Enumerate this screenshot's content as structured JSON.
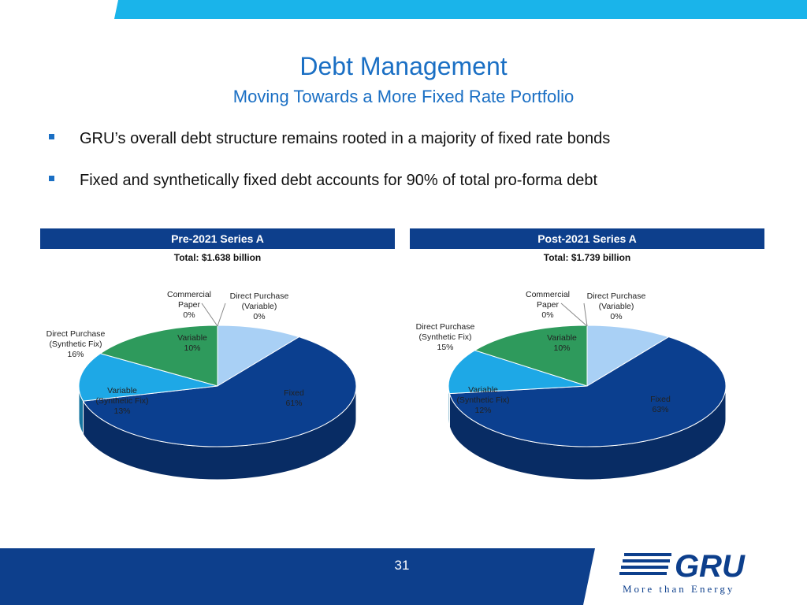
{
  "title": "Debt Management",
  "subtitle": "Moving Towards a More Fixed Rate Portfolio",
  "bullets": [
    "GRU’s overall debt structure remains rooted in a majority of fixed rate bonds",
    "Fixed and synthetically fixed debt accounts for 90% of total pro-forma debt"
  ],
  "page_number": "31",
  "logo": {
    "text": "GRU",
    "tagline": "More than Energy"
  },
  "colors": {
    "accent": "#1a6fc4",
    "header_bar": "#0d3f8c",
    "fixed": "#0b3f8f",
    "variable_synthetic": "#1ea8e6",
    "direct_purchase_synthetic": "#2e9a5c",
    "variable": "#a9d0f5"
  },
  "chart_data": [
    {
      "type": "pie",
      "title": "Pre-2021 Series A",
      "subtitle": "Total: $1.638 billion",
      "slices": [
        {
          "label": "Commercial Paper",
          "value": 0,
          "display": "0%"
        },
        {
          "label": "Direct Purchase (Variable)",
          "value": 0,
          "display": "0%"
        },
        {
          "label": "Variable",
          "value": 10,
          "display": "10%"
        },
        {
          "label": "Fixed",
          "value": 61,
          "display": "61%"
        },
        {
          "label": "Variable (Synthetic Fix)",
          "value": 13,
          "display": "13%"
        },
        {
          "label": "Direct Purchase (Synthetic Fix)",
          "value": 16,
          "display": "16%"
        }
      ]
    },
    {
      "type": "pie",
      "title": "Post-2021 Series A",
      "subtitle": "Total: $1.739 billion",
      "slices": [
        {
          "label": "Commercial Paper",
          "value": 0,
          "display": "0%"
        },
        {
          "label": "Direct Purchase (Variable)",
          "value": 0,
          "display": "0%"
        },
        {
          "label": "Variable",
          "value": 10,
          "display": "10%"
        },
        {
          "label": "Fixed",
          "value": 63,
          "display": "63%"
        },
        {
          "label": "Variable (Synthetic Fix)",
          "value": 12,
          "display": "12%"
        },
        {
          "label": "Direct Purchase (Synthetic Fix)",
          "value": 15,
          "display": "15%"
        }
      ]
    }
  ]
}
